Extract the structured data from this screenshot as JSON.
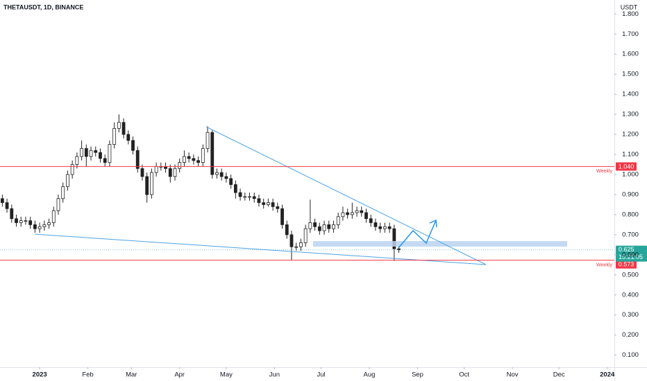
{
  "chart_data": {
    "type": "candlestick",
    "title": "THETAUSDT, 1D, BINANCE",
    "currency": "USDT",
    "up_color": "#ffffff",
    "down_color": "#222222",
    "open": [
      0.88,
      0.86,
      0.83,
      0.78,
      0.76,
      0.77,
      0.77,
      0.75,
      0.73,
      0.74,
      0.75,
      0.76,
      0.82,
      0.88,
      0.94,
      1.0,
      1.05,
      1.09,
      1.13,
      1.09,
      1.12,
      1.11,
      1.08,
      1.06,
      1.15,
      1.23,
      1.26,
      1.2,
      1.17,
      1.12,
      1.03,
      0.99,
      0.9,
      1.01,
      1.04,
      1.04,
      1.03,
      0.99,
      1.03,
      1.06,
      1.09,
      1.08,
      1.07,
      1.06,
      1.13,
      1.21,
      1.0,
      1.01,
      0.99,
      0.98,
      0.95,
      0.91,
      0.89,
      0.89,
      0.89,
      0.88,
      0.86,
      0.85,
      0.86,
      0.84,
      0.83,
      0.75,
      0.7,
      0.64,
      0.64,
      0.66,
      0.73,
      0.76,
      0.74,
      0.72,
      0.75,
      0.73,
      0.75,
      0.79,
      0.81,
      0.8,
      0.81,
      0.82,
      0.81,
      0.78,
      0.76,
      0.74,
      0.73,
      0.74,
      0.73,
      0.63
    ],
    "high": [
      0.9,
      0.88,
      0.85,
      0.8,
      0.79,
      0.79,
      0.79,
      0.77,
      0.76,
      0.77,
      0.78,
      0.84,
      0.9,
      0.96,
      1.02,
      1.07,
      1.11,
      1.17,
      1.15,
      1.14,
      1.14,
      1.13,
      1.1,
      1.17,
      1.26,
      1.3,
      1.28,
      1.22,
      1.19,
      1.14,
      1.05,
      1.01,
      1.03,
      1.06,
      1.06,
      1.06,
      1.05,
      1.05,
      1.08,
      1.12,
      1.11,
      1.1,
      1.09,
      1.15,
      1.24,
      1.22,
      1.03,
      1.03,
      1.01,
      1.0,
      0.97,
      0.93,
      0.91,
      0.91,
      0.91,
      0.9,
      0.88,
      0.88,
      0.88,
      0.86,
      0.85,
      0.77,
      0.72,
      0.66,
      0.68,
      0.75,
      0.875,
      0.78,
      0.76,
      0.77,
      0.77,
      0.77,
      0.81,
      0.84,
      0.83,
      0.86,
      0.84,
      0.84,
      0.83,
      0.8,
      0.78,
      0.76,
      0.76,
      0.76,
      0.75,
      0.645
    ],
    "low": [
      0.84,
      0.81,
      0.76,
      0.74,
      0.74,
      0.75,
      0.73,
      0.71,
      0.71,
      0.72,
      0.73,
      0.74,
      0.8,
      0.86,
      0.92,
      0.98,
      1.03,
      1.07,
      1.04,
      1.07,
      1.09,
      1.06,
      1.04,
      1.04,
      1.13,
      1.21,
      1.18,
      1.15,
      1.1,
      1.01,
      0.97,
      0.86,
      0.88,
      0.99,
      1.02,
      1.01,
      0.96,
      0.97,
      1.01,
      1.04,
      1.06,
      1.05,
      1.04,
      1.04,
      1.11,
      0.98,
      0.98,
      0.97,
      0.96,
      0.93,
      0.88,
      0.87,
      0.87,
      0.87,
      0.86,
      0.84,
      0.83,
      0.84,
      0.82,
      0.81,
      0.73,
      0.68,
      0.575,
      0.62,
      0.62,
      0.64,
      0.71,
      0.72,
      0.7,
      0.7,
      0.71,
      0.71,
      0.73,
      0.77,
      0.78,
      0.78,
      0.79,
      0.79,
      0.76,
      0.74,
      0.72,
      0.71,
      0.71,
      0.71,
      0.57,
      0.61
    ],
    "close": [
      0.86,
      0.83,
      0.78,
      0.76,
      0.77,
      0.77,
      0.75,
      0.73,
      0.74,
      0.75,
      0.76,
      0.82,
      0.88,
      0.94,
      1.0,
      1.05,
      1.09,
      1.13,
      1.09,
      1.12,
      1.11,
      1.08,
      1.06,
      1.15,
      1.23,
      1.26,
      1.2,
      1.17,
      1.12,
      1.03,
      0.99,
      0.9,
      1.01,
      1.04,
      1.04,
      1.03,
      0.99,
      1.03,
      1.06,
      1.09,
      1.08,
      1.07,
      1.06,
      1.13,
      1.21,
      1.0,
      1.01,
      0.99,
      0.98,
      0.95,
      0.91,
      0.89,
      0.89,
      0.89,
      0.88,
      0.86,
      0.85,
      0.86,
      0.84,
      0.83,
      0.75,
      0.7,
      0.64,
      0.64,
      0.66,
      0.73,
      0.76,
      0.74,
      0.72,
      0.75,
      0.73,
      0.75,
      0.79,
      0.81,
      0.8,
      0.81,
      0.82,
      0.81,
      0.78,
      0.76,
      0.74,
      0.73,
      0.74,
      0.73,
      0.63,
      0.625
    ],
    "xlim": [
      -0.5,
      131.2
    ],
    "xticks": [
      {
        "value": 8,
        "label": "2023"
      },
      {
        "value": 18.33,
        "label": "Feb"
      },
      {
        "value": 27.67,
        "label": "Mar"
      },
      {
        "value": 38,
        "label": "Apr"
      },
      {
        "value": 48,
        "label": "May"
      },
      {
        "value": 58.33,
        "label": "Jun"
      },
      {
        "value": 68.33,
        "label": "Jul"
      },
      {
        "value": 78.67,
        "label": "Aug"
      },
      {
        "value": 89,
        "label": "Sep"
      },
      {
        "value": 99,
        "label": "Oct"
      },
      {
        "value": 109.33,
        "label": "Nov"
      },
      {
        "value": 119.33,
        "label": "Dec"
      },
      {
        "value": 129.67,
        "label": "2024"
      }
    ],
    "ylim": [
      0.04,
      1.87
    ],
    "yticks": [
      {
        "value": 0.1,
        "label": "0.100"
      },
      {
        "value": 0.2,
        "label": "0.200"
      },
      {
        "value": 0.3,
        "label": "0.300"
      },
      {
        "value": 0.4,
        "label": "0.400"
      },
      {
        "value": 0.5,
        "label": "0.500"
      },
      {
        "value": 0.6,
        "label": "0.600"
      },
      {
        "value": 0.7,
        "label": "0.700"
      },
      {
        "value": 0.8,
        "label": "0.800"
      },
      {
        "value": 0.9,
        "label": "0.900"
      },
      {
        "value": 1.0,
        "label": "1.000"
      },
      {
        "value": 1.1,
        "label": "1.100"
      },
      {
        "value": 1.2,
        "label": "1.200"
      },
      {
        "value": 1.3,
        "label": "1.300"
      },
      {
        "value": 1.4,
        "label": "1.400"
      },
      {
        "value": 1.5,
        "label": "1.500"
      },
      {
        "value": 1.6,
        "label": "1.600"
      },
      {
        "value": 1.7,
        "label": "1.700"
      },
      {
        "value": 1.8,
        "label": "1.800"
      }
    ],
    "levels": [
      {
        "value": 1.04,
        "label": "1.040",
        "note": "Weekly",
        "color": "#f23645"
      },
      {
        "value": 0.573,
        "label": "0.573",
        "note": "Weekly",
        "color": "#f23645"
      }
    ],
    "last_price": {
      "value": 0.625,
      "label": "0.625",
      "countdown": "15:21:05",
      "color": "#26a69a"
    }
  }
}
